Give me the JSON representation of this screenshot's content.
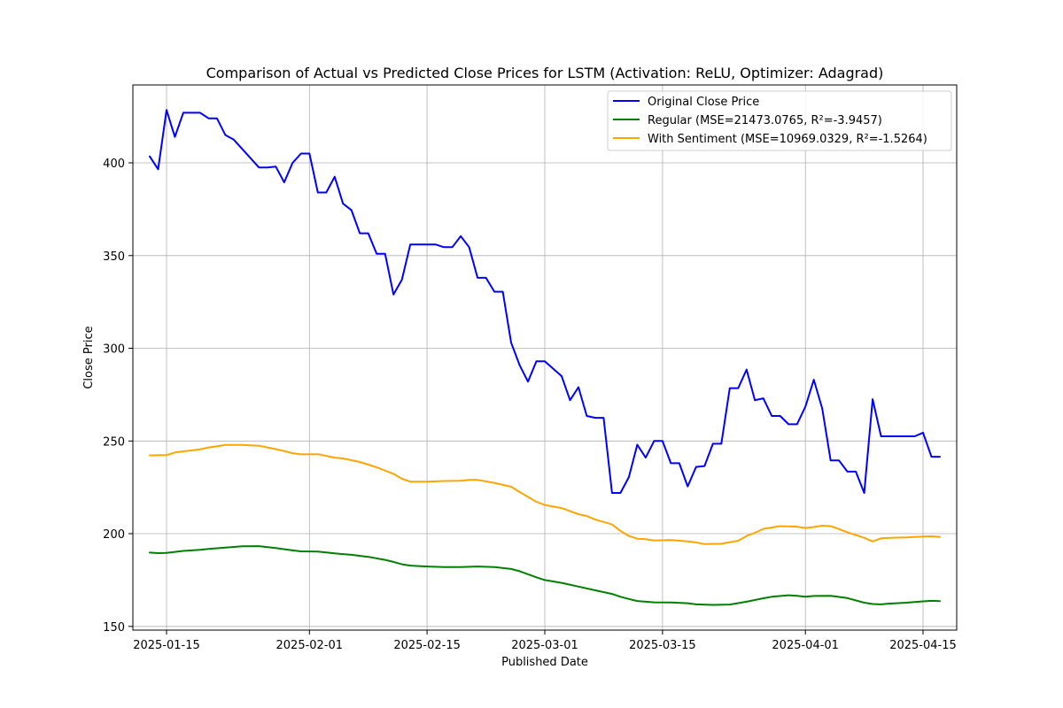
{
  "chart_data": {
    "type": "line",
    "title": "Comparison of Actual vs Predicted Close Prices for LSTM (Activation: ReLU, Optimizer: Adagrad)",
    "xlabel": "Published Date",
    "ylabel": "Close Price",
    "xlim": [
      "2025-01-11",
      "2025-04-19"
    ],
    "ylim": [
      148,
      442
    ],
    "grid": true,
    "legend_position": "top-right",
    "x_ticks": [
      {
        "date": "2025-01-15",
        "label": "2025-01-15"
      },
      {
        "date": "2025-02-01",
        "label": "2025-02-01"
      },
      {
        "date": "2025-02-15",
        "label": "2025-02-15"
      },
      {
        "date": "2025-03-01",
        "label": "2025-03-01"
      },
      {
        "date": "2025-03-15",
        "label": "2025-03-15"
      },
      {
        "date": "2025-04-01",
        "label": "2025-04-01"
      },
      {
        "date": "2025-04-15",
        "label": "2025-04-15"
      }
    ],
    "y_ticks": [
      150,
      200,
      250,
      300,
      350,
      400
    ],
    "series": [
      {
        "name": "Original Close Price",
        "legend_label": "Original Close Price",
        "color": "#0000ff",
        "points": [
          [
            "2025-01-13",
            403.5
          ],
          [
            "2025-01-14",
            396.5
          ],
          [
            "2025-01-15",
            428.5
          ],
          [
            "2025-01-16",
            414
          ],
          [
            "2025-01-17",
            427
          ],
          [
            "2025-01-18",
            427
          ],
          [
            "2025-01-19",
            427
          ],
          [
            "2025-01-20",
            424
          ],
          [
            "2025-01-21",
            424
          ],
          [
            "2025-01-22",
            415
          ],
          [
            "2025-01-23",
            412.5
          ],
          [
            "2025-01-24",
            407.5
          ],
          [
            "2025-01-25",
            402.5
          ],
          [
            "2025-01-26",
            397.5
          ],
          [
            "2025-01-27",
            397.5
          ],
          [
            "2025-01-28",
            398
          ],
          [
            "2025-01-29",
            389.5
          ],
          [
            "2025-01-30",
            400
          ],
          [
            "2025-01-31",
            405
          ],
          [
            "2025-02-01",
            405
          ],
          [
            "2025-02-02",
            384
          ],
          [
            "2025-02-03",
            384
          ],
          [
            "2025-02-04",
            392.5
          ],
          [
            "2025-02-05",
            378
          ],
          [
            "2025-02-06",
            374.5
          ],
          [
            "2025-02-07",
            362
          ],
          [
            "2025-02-08",
            362
          ],
          [
            "2025-02-09",
            351
          ],
          [
            "2025-02-10",
            351
          ],
          [
            "2025-02-11",
            329
          ],
          [
            "2025-02-12",
            337
          ],
          [
            "2025-02-13",
            356
          ],
          [
            "2025-02-14",
            356
          ],
          [
            "2025-02-15",
            356
          ],
          [
            "2025-02-16",
            356
          ],
          [
            "2025-02-17",
            354.5
          ],
          [
            "2025-02-18",
            354.5
          ],
          [
            "2025-02-19",
            360.5
          ],
          [
            "2025-02-20",
            354.5
          ],
          [
            "2025-02-21",
            338
          ],
          [
            "2025-02-22",
            338
          ],
          [
            "2025-02-23",
            330.5
          ],
          [
            "2025-02-24",
            330.5
          ],
          [
            "2025-02-25",
            303
          ],
          [
            "2025-02-26",
            291
          ],
          [
            "2025-02-27",
            282
          ],
          [
            "2025-02-28",
            293
          ],
          [
            "2025-03-01",
            293
          ],
          [
            "2025-03-03",
            285
          ],
          [
            "2025-03-04",
            272
          ],
          [
            "2025-03-05",
            279
          ],
          [
            "2025-03-06",
            263.5
          ],
          [
            "2025-03-07",
            262.5
          ],
          [
            "2025-03-08",
            262.5
          ],
          [
            "2025-03-09",
            222
          ],
          [
            "2025-03-10",
            222
          ],
          [
            "2025-03-11",
            230.5
          ],
          [
            "2025-03-12",
            248
          ],
          [
            "2025-03-13",
            241
          ],
          [
            "2025-03-14",
            250
          ],
          [
            "2025-03-15",
            250
          ],
          [
            "2025-03-16",
            238
          ],
          [
            "2025-03-17",
            238
          ],
          [
            "2025-03-18",
            225.5
          ],
          [
            "2025-03-19",
            236
          ],
          [
            "2025-03-20",
            236.5
          ],
          [
            "2025-03-21",
            248.5
          ],
          [
            "2025-03-22",
            248.5
          ],
          [
            "2025-03-23",
            278.5
          ],
          [
            "2025-03-24",
            278.5
          ],
          [
            "2025-03-25",
            288.5
          ],
          [
            "2025-03-26",
            272
          ],
          [
            "2025-03-27",
            273
          ],
          [
            "2025-03-28",
            263.5
          ],
          [
            "2025-03-29",
            263.5
          ],
          [
            "2025-03-30",
            259
          ],
          [
            "2025-03-31",
            259
          ],
          [
            "2025-04-01",
            268.5
          ],
          [
            "2025-04-02",
            283
          ],
          [
            "2025-04-03",
            267.5
          ],
          [
            "2025-04-04",
            239.5
          ],
          [
            "2025-04-05",
            239.5
          ],
          [
            "2025-04-06",
            233.5
          ],
          [
            "2025-04-07",
            233.5
          ],
          [
            "2025-04-08",
            222
          ],
          [
            "2025-04-09",
            272.5
          ],
          [
            "2025-04-10",
            252.5
          ],
          [
            "2025-04-11",
            252.5
          ],
          [
            "2025-04-12",
            252.5
          ],
          [
            "2025-04-13",
            252.5
          ],
          [
            "2025-04-14",
            252.5
          ],
          [
            "2025-04-15",
            254.5
          ],
          [
            "2025-04-16",
            241.5
          ],
          [
            "2025-04-17",
            241.5
          ]
        ]
      },
      {
        "name": "Regular",
        "legend_label": "Regular (MSE=21473.0765, R²=-3.9457)",
        "color": "#008000",
        "points": [
          [
            "2025-01-13",
            189.8
          ],
          [
            "2025-01-14",
            189.5
          ],
          [
            "2025-01-15",
            189.6
          ],
          [
            "2025-01-16",
            190.2
          ],
          [
            "2025-01-17",
            190.7
          ],
          [
            "2025-01-19",
            191.3
          ],
          [
            "2025-01-20",
            191.8
          ],
          [
            "2025-01-22",
            192.5
          ],
          [
            "2025-01-24",
            193.2
          ],
          [
            "2025-01-26",
            193.3
          ],
          [
            "2025-01-28",
            192.3
          ],
          [
            "2025-01-30",
            191
          ],
          [
            "2025-01-31",
            190.5
          ],
          [
            "2025-02-02",
            190.4
          ],
          [
            "2025-02-04",
            189.4
          ],
          [
            "2025-02-06",
            188.6
          ],
          [
            "2025-02-08",
            187.5
          ],
          [
            "2025-02-10",
            185.9
          ],
          [
            "2025-02-11",
            184.8
          ],
          [
            "2025-02-12",
            183.5
          ],
          [
            "2025-02-13",
            182.8
          ],
          [
            "2025-02-15",
            182.3
          ],
          [
            "2025-02-17",
            182
          ],
          [
            "2025-02-19",
            182
          ],
          [
            "2025-02-21",
            182.3
          ],
          [
            "2025-02-23",
            182
          ],
          [
            "2025-02-25",
            181
          ],
          [
            "2025-02-26",
            179.8
          ],
          [
            "2025-02-28",
            176.5
          ],
          [
            "2025-03-01",
            175
          ],
          [
            "2025-03-03",
            173.5
          ],
          [
            "2025-03-05",
            171.5
          ],
          [
            "2025-03-07",
            169.5
          ],
          [
            "2025-03-09",
            167.5
          ],
          [
            "2025-03-10",
            166
          ],
          [
            "2025-03-11",
            164.8
          ],
          [
            "2025-03-12",
            163.7
          ],
          [
            "2025-03-14",
            163
          ],
          [
            "2025-03-16",
            162.9
          ],
          [
            "2025-03-18",
            162.5
          ],
          [
            "2025-03-19",
            161.9
          ],
          [
            "2025-03-21",
            161.6
          ],
          [
            "2025-03-23",
            161.8
          ],
          [
            "2025-03-25",
            163.3
          ],
          [
            "2025-03-27",
            165.2
          ],
          [
            "2025-03-28",
            166
          ],
          [
            "2025-03-30",
            166.8
          ],
          [
            "2025-03-31",
            166.5
          ],
          [
            "2025-04-01",
            166
          ],
          [
            "2025-04-02",
            166.4
          ],
          [
            "2025-04-04",
            166.5
          ],
          [
            "2025-04-06",
            165.3
          ],
          [
            "2025-04-08",
            162.8
          ],
          [
            "2025-04-09",
            162.1
          ],
          [
            "2025-04-10",
            161.9
          ],
          [
            "2025-04-11",
            162.3
          ],
          [
            "2025-04-13",
            162.8
          ],
          [
            "2025-04-15",
            163.5
          ],
          [
            "2025-04-16",
            163.8
          ],
          [
            "2025-04-17",
            163.6
          ]
        ]
      },
      {
        "name": "With Sentiment",
        "legend_label": "With Sentiment (MSE=10969.0329, R²=-1.5264)",
        "color": "#ffa500",
        "points": [
          [
            "2025-01-13",
            242.2
          ],
          [
            "2025-01-14",
            242.3
          ],
          [
            "2025-01-15",
            242.4
          ],
          [
            "2025-01-16",
            243.8
          ],
          [
            "2025-01-17",
            244.4
          ],
          [
            "2025-01-19",
            245.5
          ],
          [
            "2025-01-20",
            246.5
          ],
          [
            "2025-01-21",
            247.2
          ],
          [
            "2025-01-22",
            247.9
          ],
          [
            "2025-01-24",
            247.9
          ],
          [
            "2025-01-26",
            247.4
          ],
          [
            "2025-01-28",
            245.6
          ],
          [
            "2025-01-29",
            244.6
          ],
          [
            "2025-01-30",
            243.4
          ],
          [
            "2025-01-31",
            242.8
          ],
          [
            "2025-02-02",
            242.9
          ],
          [
            "2025-02-04",
            241
          ],
          [
            "2025-02-05",
            240.6
          ],
          [
            "2025-02-07",
            238.7
          ],
          [
            "2025-02-09",
            235.8
          ],
          [
            "2025-02-11",
            232.3
          ],
          [
            "2025-02-12",
            229.6
          ],
          [
            "2025-02-13",
            228.1
          ],
          [
            "2025-02-15",
            228.1
          ],
          [
            "2025-02-17",
            228.4
          ],
          [
            "2025-02-19",
            228.5
          ],
          [
            "2025-02-20",
            229
          ],
          [
            "2025-02-21",
            229
          ],
          [
            "2025-02-23",
            227.4
          ],
          [
            "2025-02-25",
            225.3
          ],
          [
            "2025-02-26",
            222.5
          ],
          [
            "2025-02-28",
            217.2
          ],
          [
            "2025-03-01",
            215.5
          ],
          [
            "2025-03-03",
            213.8
          ],
          [
            "2025-03-05",
            210.5
          ],
          [
            "2025-03-06",
            209.5
          ],
          [
            "2025-03-07",
            207.6
          ],
          [
            "2025-03-09",
            205
          ],
          [
            "2025-03-10",
            201.5
          ],
          [
            "2025-03-11",
            198.8
          ],
          [
            "2025-03-12",
            197.3
          ],
          [
            "2025-03-13",
            197
          ],
          [
            "2025-03-14",
            196.3
          ],
          [
            "2025-03-16",
            196.6
          ],
          [
            "2025-03-18",
            195.8
          ],
          [
            "2025-03-19",
            195.3
          ],
          [
            "2025-03-20",
            194.4
          ],
          [
            "2025-03-22",
            194.6
          ],
          [
            "2025-03-24",
            196.2
          ],
          [
            "2025-03-25",
            198.8
          ],
          [
            "2025-03-26",
            200.5
          ],
          [
            "2025-03-27",
            202.6
          ],
          [
            "2025-03-29",
            204.1
          ],
          [
            "2025-03-31",
            203.8
          ],
          [
            "2025-04-01",
            203.1
          ],
          [
            "2025-04-02",
            203.6
          ],
          [
            "2025-04-03",
            204.3
          ],
          [
            "2025-04-04",
            204.1
          ],
          [
            "2025-04-05",
            202.5
          ],
          [
            "2025-04-06",
            200.8
          ],
          [
            "2025-04-08",
            197.8
          ],
          [
            "2025-04-09",
            195.8
          ],
          [
            "2025-04-10",
            197.5
          ],
          [
            "2025-04-11",
            197.8
          ],
          [
            "2025-04-13",
            198
          ],
          [
            "2025-04-15",
            198.5
          ],
          [
            "2025-04-16",
            198.6
          ],
          [
            "2025-04-17",
            198.2
          ]
        ]
      }
    ]
  }
}
